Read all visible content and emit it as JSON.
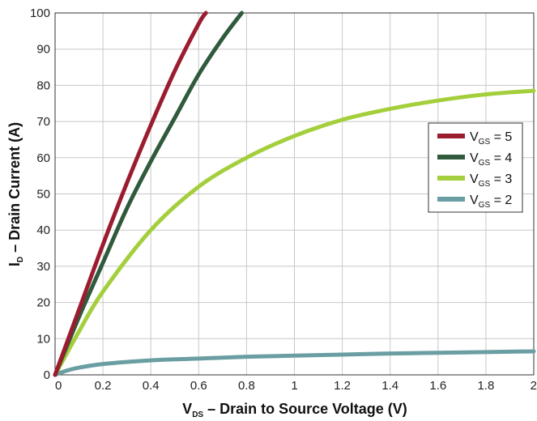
{
  "chart_data": {
    "type": "line",
    "xlabel": {
      "main": "V",
      "sub": "DS",
      "rest": " – Drain to Source Voltage (V)"
    },
    "ylabel": {
      "main": "I",
      "sub": "D",
      "rest": " – Drain Current (A)"
    },
    "xlim": [
      0,
      2
    ],
    "ylim": [
      0,
      100
    ],
    "x_ticks": [
      "0",
      "0.2",
      "0.4",
      "0.6",
      "0.8",
      "1",
      "1.2",
      "1.4",
      "1.6",
      "1.8",
      "2"
    ],
    "y_ticks": [
      "0",
      "10",
      "20",
      "30",
      "40",
      "50",
      "60",
      "70",
      "80",
      "90",
      "100"
    ],
    "grid": true,
    "legend_position": "right",
    "series": [
      {
        "name": "5",
        "color": "#9b1c2e",
        "x": [
          0,
          0.1,
          0.2,
          0.3,
          0.4,
          0.5,
          0.6,
          0.63
        ],
        "y": [
          0,
          18,
          36,
          53,
          69,
          84,
          97,
          100
        ]
      },
      {
        "name": "4",
        "color": "#2f5a3c",
        "x": [
          0,
          0.1,
          0.2,
          0.3,
          0.4,
          0.5,
          0.6,
          0.7,
          0.78
        ],
        "y": [
          0,
          16,
          31,
          46,
          59,
          71,
          83,
          93,
          100
        ]
      },
      {
        "name": "3",
        "color": "#a4cf3c",
        "x": [
          0,
          0.1,
          0.2,
          0.4,
          0.6,
          0.8,
          1.0,
          1.2,
          1.4,
          1.6,
          1.8,
          2.0
        ],
        "y": [
          0,
          12,
          23,
          40,
          52,
          60,
          66,
          70.5,
          73.5,
          75.8,
          77.5,
          78.5
        ]
      },
      {
        "name": "2",
        "color": "#6a9ea3",
        "x": [
          0,
          0.05,
          0.1,
          0.2,
          0.4,
          0.6,
          0.8,
          1.0,
          1.2,
          1.4,
          1.6,
          1.8,
          2.0
        ],
        "y": [
          0,
          1.2,
          2.0,
          3.0,
          4.0,
          4.5,
          5.0,
          5.3,
          5.6,
          5.9,
          6.1,
          6.3,
          6.5
        ]
      }
    ],
    "legend": {
      "prefix_main": "V",
      "prefix_sub": "GS",
      "separator": " = "
    }
  }
}
